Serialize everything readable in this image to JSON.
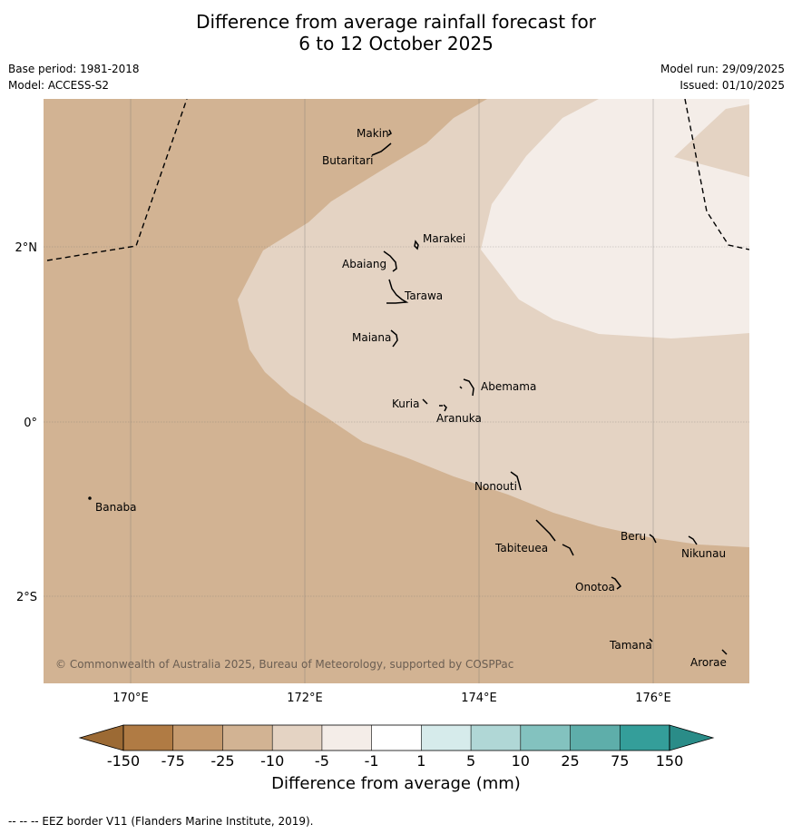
{
  "title_line1": "Difference from average rainfall forecast for",
  "title_line2": "6 to 12 October 2025",
  "base_period": "Base period: 1981-2018",
  "model": "Model: ACCESS-S2",
  "model_run": "Model run: 29/09/2025",
  "issued": "Issued: 01/10/2025",
  "copyright": "© Commonwealth of Australia 2025, Bureau of Meteorology, supported by COSPPac",
  "footnote": "--  --  -- EEZ border V11 (Flanders Marine Institute, 2019).",
  "axes": {
    "lon_ticks": [
      "170°E",
      "172°E",
      "174°E",
      "176°E"
    ],
    "lat_ticks": [
      "2°N",
      "0°",
      "2°S"
    ]
  },
  "places": [
    "Makin",
    "Butaritari",
    "Marakei",
    "Abaiang",
    "Tarawa",
    "Maiana",
    "Abemama",
    "Kuria",
    "Aranuka",
    "Nonouti",
    "Banaba",
    "Beru",
    "Tabiteuea",
    "Nikunau",
    "Onotoa",
    "Tamana",
    "Arorae"
  ],
  "colorbar": {
    "title": "Difference from average (mm)",
    "tick_labels": [
      "-150",
      "-75",
      "-25",
      "-10",
      "-5",
      "-1",
      "1",
      "5",
      "10",
      "25",
      "75",
      "150"
    ],
    "colors": [
      "#b07b44",
      "#c59a6e",
      "#d2b393",
      "#e4d3c3",
      "#f4ede8",
      "#ffffff",
      "#d6ebeb",
      "#b0d7d6",
      "#83c2bf",
      "#5eaeaa",
      "#349e9a"
    ],
    "low_extend_color": "#9c6a34",
    "high_extend_color": "#2a8c88"
  },
  "map_colors": {
    "dry_25": "#d2b393",
    "dry_10": "#e4d3c3",
    "dry_5": "#f4ede8"
  }
}
